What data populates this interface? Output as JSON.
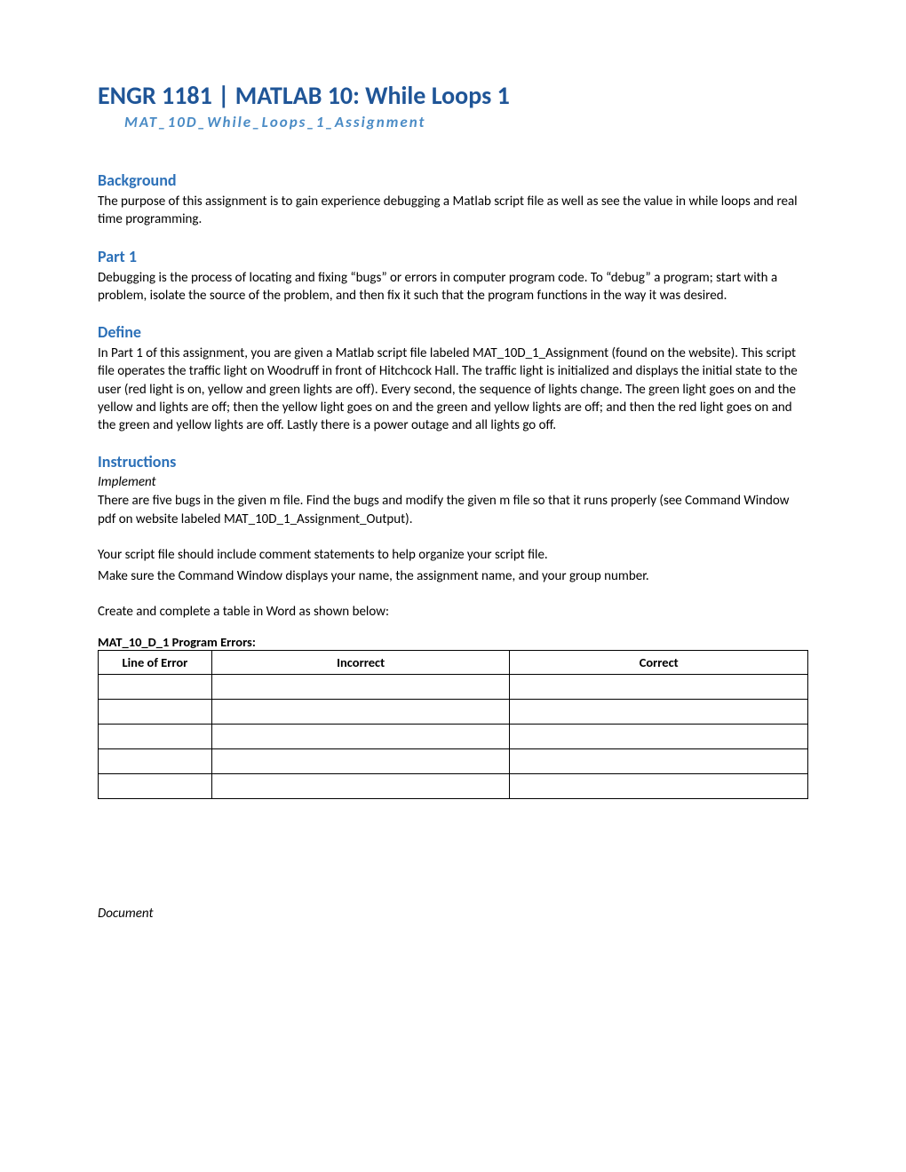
{
  "header": {
    "title": "ENGR 1181   |   MATLAB 10:  While Loops 1",
    "subtitle": "MAT_10D_While_Loops_1_Assignment"
  },
  "background": {
    "heading": "Background",
    "text": "The purpose of this assignment is to gain experience debugging a Matlab script file as well as see the value in while loops and real time programming."
  },
  "part1": {
    "heading": "Part 1",
    "text": "Debugging is the process of locating and fixing “bugs” or errors in computer program code.  To “debug” a program; start with a problem, isolate the source of the problem, and then fix it such that the program functions in the way it was desired."
  },
  "define": {
    "heading": "Define",
    "text": "In Part 1 of this assignment, you are given a Matlab script file labeled MAT_10D_1_Assignment (found on the website).  This script file operates the traffic light on Woodruff in front of Hitchcock Hall.  The traffic light is initialized and displays the initial state to the user (red light is on, yellow and green lights are off).  Every second, the sequence of lights change.  The green light goes on and the yellow and lights are off; then the yellow light goes on and the green and yellow lights are off; and then the red light goes on and the green and yellow lights are off.  Lastly there is a power outage and all lights go off."
  },
  "instructions": {
    "heading": "Instructions",
    "implement_label": "Implement",
    "para1": "There are five bugs in the given m file.  Find the bugs and modify the given m file so that it runs properly (see Command Window pdf on website labeled MAT_10D_1_Assignment_Output).",
    "para2a": "Your script file should include comment statements to help organize your script file.",
    "para2b": "Make sure the Command Window displays your name, the assignment name, and your group number.",
    "para3": "Create and complete a table in Word as shown below:",
    "table_label": "MAT_10_D_1 Program Errors:",
    "table": {
      "columns": [
        "Line of Error",
        "Incorrect",
        "Correct"
      ],
      "row_heights": [
        "tall",
        "normal",
        "normal",
        "tall",
        "taller"
      ]
    }
  },
  "footer": "Document"
}
